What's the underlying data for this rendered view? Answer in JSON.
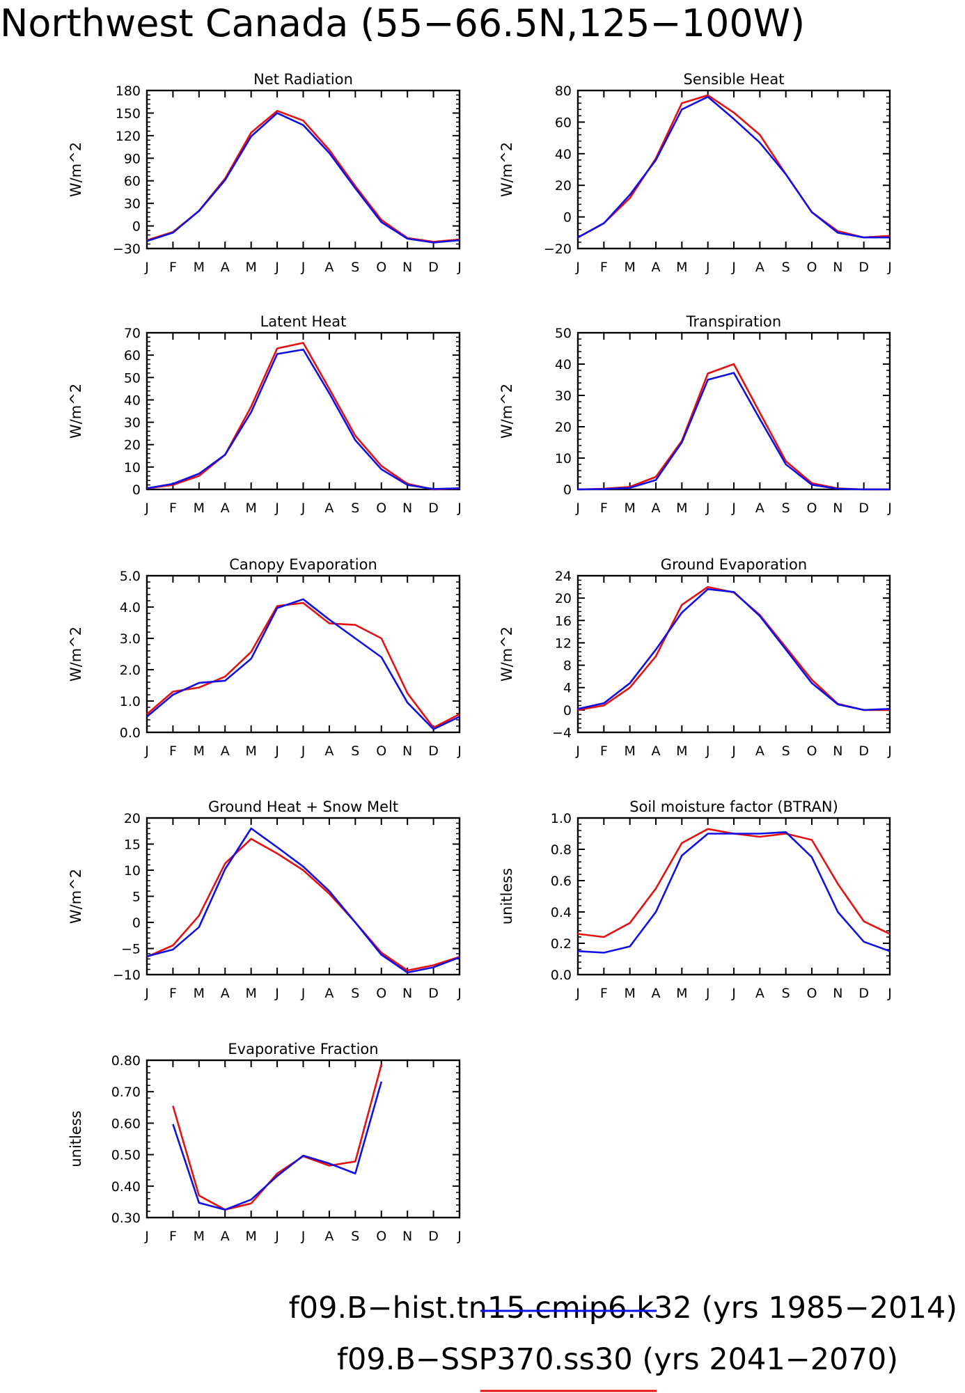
{
  "title": "Northwest Canada (55−66.5N,125−100W)",
  "legend": [
    {
      "label": "f09.B−hist.tn15.cmip6.k32 (yrs 1985−2014)",
      "color": "#1010e6"
    },
    {
      "label": "f09.B−SSP370.ss30 (yrs 2041−2070)",
      "color": "#e61010"
    }
  ],
  "chart_data": [
    {
      "type": "line",
      "title": "Net Radiation",
      "ylabel": "W/m^2",
      "categories": [
        "J",
        "F",
        "M",
        "A",
        "M",
        "J",
        "J",
        "A",
        "S",
        "O",
        "N",
        "D",
        "J"
      ],
      "ylim": [
        -30,
        180
      ],
      "yticks": [
        -30,
        0,
        30,
        60,
        90,
        120,
        150,
        180
      ],
      "ytick_labels": [
        "−30",
        "0",
        "30",
        "60",
        "90",
        "120",
        "150",
        "180"
      ],
      "series": [
        {
          "values": [
            -19,
            -8,
            20,
            63,
            124,
            153,
            140,
            101,
            53,
            8,
            -16,
            -21,
            -18
          ]
        },
        {
          "values": [
            -20,
            -9,
            20,
            61,
            119,
            150,
            134,
            97,
            50,
            5,
            -17,
            -22,
            -19
          ]
        }
      ]
    },
    {
      "type": "line",
      "title": "Sensible Heat",
      "ylabel": "W/m^2",
      "categories": [
        "J",
        "F",
        "M",
        "A",
        "M",
        "J",
        "J",
        "A",
        "S",
        "O",
        "N",
        "D",
        "J"
      ],
      "ylim": [
        -20,
        80
      ],
      "yticks": [
        -20,
        0,
        20,
        40,
        60,
        80
      ],
      "ytick_labels": [
        "−20",
        "0",
        "20",
        "40",
        "60",
        "80"
      ],
      "series": [
        {
          "values": [
            -13,
            -4,
            12,
            37,
            72,
            77,
            66,
            52,
            27,
            3,
            -9,
            -13,
            -12
          ]
        },
        {
          "values": [
            -13,
            -4,
            14,
            36,
            68,
            76,
            62,
            47,
            27,
            3,
            -10,
            -13,
            -13
          ]
        }
      ]
    },
    {
      "type": "line",
      "title": "Latent Heat",
      "ylabel": "W/m^2",
      "categories": [
        "J",
        "F",
        "M",
        "A",
        "M",
        "J",
        "J",
        "A",
        "S",
        "O",
        "N",
        "D",
        "J"
      ],
      "ylim": [
        0,
        70
      ],
      "yticks": [
        0,
        10,
        20,
        30,
        40,
        50,
        60,
        70
      ],
      "ytick_labels": [
        "0",
        "10",
        "20",
        "30",
        "40",
        "50",
        "60",
        "70"
      ],
      "series": [
        {
          "values": [
            0.5,
            2,
            6,
            15.5,
            37,
            63,
            65.5,
            45,
            24,
            10.5,
            2.5,
            0,
            0.5
          ]
        },
        {
          "values": [
            0.5,
            2.5,
            7,
            15.5,
            34.5,
            60.5,
            62.5,
            43,
            22,
            9,
            2,
            0.2,
            0.5
          ]
        }
      ]
    },
    {
      "type": "line",
      "title": "Transpiration",
      "ylabel": "W/m^2",
      "categories": [
        "J",
        "F",
        "M",
        "A",
        "M",
        "J",
        "J",
        "A",
        "S",
        "O",
        "N",
        "D",
        "J"
      ],
      "ylim": [
        0,
        50
      ],
      "yticks": [
        0,
        10,
        20,
        30,
        40,
        50
      ],
      "ytick_labels": [
        "0",
        "10",
        "20",
        "30",
        "40",
        "50"
      ],
      "series": [
        {
          "values": [
            0,
            0.2,
            0.8,
            4,
            15.5,
            37,
            40,
            24.5,
            9,
            2,
            0.3,
            0,
            0
          ]
        },
        {
          "values": [
            0,
            0.1,
            0.5,
            3,
            15,
            35,
            37.2,
            22.5,
            8,
            1.5,
            0.2,
            0,
            0
          ]
        }
      ]
    },
    {
      "type": "line",
      "title": "Canopy Evaporation",
      "ylabel": "W/m^2",
      "categories": [
        "J",
        "F",
        "M",
        "A",
        "M",
        "J",
        "J",
        "A",
        "S",
        "O",
        "N",
        "D",
        "J"
      ],
      "ylim": [
        0,
        5
      ],
      "yticks": [
        0,
        1,
        2,
        3,
        4,
        5
      ],
      "ytick_labels": [
        "0.0",
        "1.0",
        "2.0",
        "3.0",
        "4.0",
        "5.0"
      ],
      "series": [
        {
          "values": [
            0.58,
            1.3,
            1.43,
            1.78,
            2.57,
            4.03,
            4.13,
            3.48,
            3.43,
            3.0,
            1.25,
            0.15,
            0.58
          ]
        },
        {
          "values": [
            0.5,
            1.2,
            1.58,
            1.65,
            2.35,
            3.97,
            4.25,
            3.6,
            3.0,
            2.4,
            0.95,
            0.1,
            0.5
          ]
        }
      ]
    },
    {
      "type": "line",
      "title": "Ground Evaporation",
      "ylabel": "W/m^2",
      "categories": [
        "J",
        "F",
        "M",
        "A",
        "M",
        "J",
        "J",
        "A",
        "S",
        "O",
        "N",
        "D",
        "J"
      ],
      "ylim": [
        -4,
        24
      ],
      "yticks": [
        -4,
        0,
        4,
        8,
        12,
        16,
        20,
        24
      ],
      "ytick_labels": [
        "−4",
        "0",
        "4",
        "8",
        "12",
        "16",
        "20",
        "24"
      ],
      "series": [
        {
          "values": [
            0,
            0.8,
            4,
            9.6,
            18.8,
            22,
            21,
            17,
            11.2,
            5.4,
            1.1,
            0,
            0
          ]
        },
        {
          "values": [
            0.2,
            1.2,
            4.8,
            10.8,
            17.4,
            21.6,
            21.1,
            16.8,
            10.8,
            4.8,
            1,
            0,
            0.2
          ]
        }
      ]
    },
    {
      "type": "line",
      "title": "Ground Heat + Snow Melt",
      "ylabel": "W/m^2",
      "categories": [
        "J",
        "F",
        "M",
        "A",
        "M",
        "J",
        "J",
        "A",
        "S",
        "O",
        "N",
        "D",
        "J"
      ],
      "ylim": [
        -10,
        20
      ],
      "yticks": [
        -10,
        -5,
        0,
        5,
        10,
        15,
        20
      ],
      "ytick_labels": [
        "−10",
        "−5",
        "0",
        "5",
        "10",
        "15",
        "20"
      ],
      "series": [
        {
          "values": [
            -6.6,
            -4.4,
            1.3,
            11.3,
            16,
            13.2,
            10,
            5.5,
            0,
            -5.8,
            -9.2,
            -8.2,
            -6.6
          ]
        },
        {
          "values": [
            -6.5,
            -5.2,
            -0.9,
            10.2,
            18,
            14.4,
            10.7,
            6,
            0,
            -6.2,
            -9.6,
            -8.6,
            -6.7
          ]
        }
      ]
    },
    {
      "type": "line",
      "title": "Soil moisture factor (BTRAN)",
      "ylabel": "unitless",
      "categories": [
        "J",
        "F",
        "M",
        "A",
        "M",
        "J",
        "J",
        "A",
        "S",
        "O",
        "N",
        "D",
        "J"
      ],
      "ylim": [
        0,
        1
      ],
      "yticks": [
        0,
        0.2,
        0.4,
        0.6,
        0.8,
        1.0
      ],
      "ytick_labels": [
        "0.0",
        "0.2",
        "0.4",
        "0.6",
        "0.8",
        "1.0"
      ],
      "series": [
        {
          "values": [
            0.26,
            0.24,
            0.33,
            0.55,
            0.84,
            0.93,
            0.9,
            0.88,
            0.9,
            0.86,
            0.58,
            0.34,
            0.26
          ]
        },
        {
          "values": [
            0.15,
            0.14,
            0.18,
            0.4,
            0.76,
            0.9,
            0.9,
            0.9,
            0.91,
            0.75,
            0.4,
            0.21,
            0.15
          ]
        }
      ]
    },
    {
      "type": "line",
      "title": "Evaporative Fraction",
      "ylabel": "unitless",
      "categories": [
        "J",
        "F",
        "M",
        "A",
        "M",
        "J",
        "J",
        "A",
        "S",
        "O",
        "N",
        "D",
        "J"
      ],
      "ylim": [
        0.3,
        0.8
      ],
      "yticks": [
        0.3,
        0.4,
        0.5,
        0.6,
        0.7,
        0.8
      ],
      "ytick_labels": [
        "0.30",
        "0.40",
        "0.50",
        "0.60",
        "0.70",
        "0.80"
      ],
      "series": [
        {
          "values": [
            null,
            0.655,
            0.37,
            0.325,
            0.345,
            0.44,
            0.495,
            0.465,
            0.478,
            0.787,
            null,
            null,
            null
          ]
        },
        {
          "values": [
            null,
            0.597,
            0.347,
            0.325,
            0.357,
            0.432,
            0.497,
            0.472,
            0.44,
            0.732,
            null,
            null,
            null
          ]
        }
      ]
    }
  ]
}
